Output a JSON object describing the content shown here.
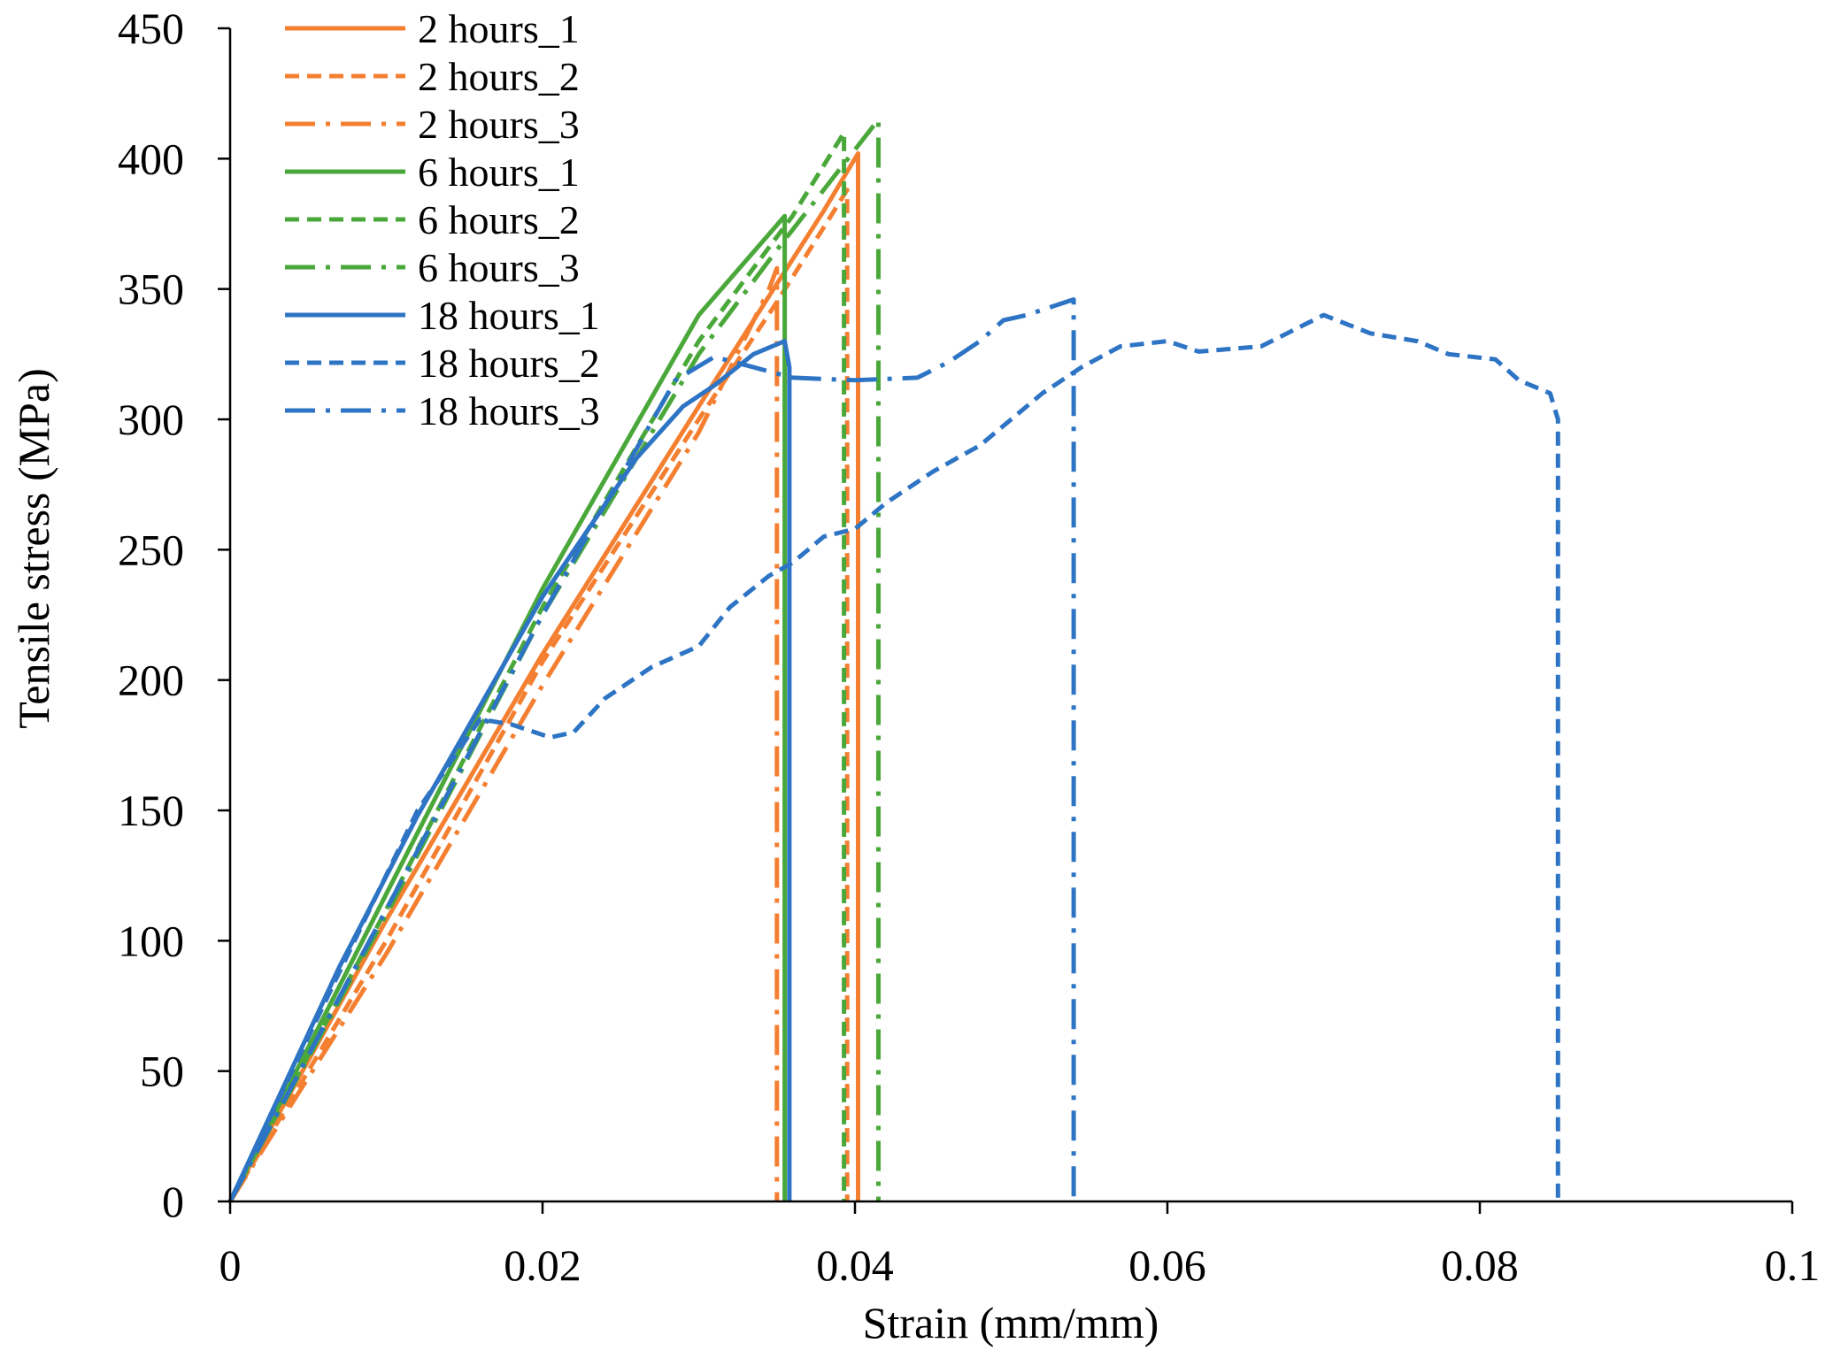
{
  "chart_data": {
    "type": "line",
    "title": "",
    "xlabel": "Strain (mm/mm)",
    "ylabel": "Tensile stress  (MPa)",
    "xlim": [
      0,
      0.1
    ],
    "ylim": [
      0,
      450
    ],
    "xticks": [
      0,
      0.02,
      0.04,
      0.06,
      0.08,
      0.1
    ],
    "xtick_labels": [
      "0",
      "0.02",
      "0.04",
      "0.06",
      "0.08",
      "0.1"
    ],
    "yticks": [
      0,
      50,
      100,
      150,
      200,
      250,
      300,
      350,
      400,
      450
    ],
    "ytick_labels": [
      "0",
      "50",
      "100",
      "150",
      "200",
      "250",
      "300",
      "350",
      "400",
      "450"
    ],
    "grid": false,
    "legend_position": "top-left",
    "series": [
      {
        "name": "2 hours_1",
        "color": "#f47f30",
        "style": "solid",
        "x": [
          0,
          0.01,
          0.02,
          0.03,
          0.035,
          0.038,
          0.0402,
          0.0402
        ],
        "y": [
          0,
          108,
          210,
          305,
          352,
          380,
          402,
          0
        ]
      },
      {
        "name": "2 hours_2",
        "color": "#f47f30",
        "style": "dash",
        "x": [
          0,
          0.01,
          0.02,
          0.03,
          0.035,
          0.0395,
          0.0395
        ],
        "y": [
          0,
          100,
          207,
          300,
          345,
          388,
          0
        ]
      },
      {
        "name": "2 hours_3",
        "color": "#f47f30",
        "style": "dashdot",
        "x": [
          0,
          0.01,
          0.02,
          0.03,
          0.0345,
          0.035,
          0.035
        ],
        "y": [
          0,
          95,
          198,
          295,
          350,
          358,
          0
        ]
      },
      {
        "name": "6 hours_1",
        "color": "#4aa83a",
        "style": "solid",
        "x": [
          0,
          0.01,
          0.02,
          0.03,
          0.0355,
          0.0355
        ],
        "y": [
          0,
          118,
          235,
          340,
          378,
          0
        ]
      },
      {
        "name": "6 hours_2",
        "color": "#4aa83a",
        "style": "dash",
        "x": [
          0,
          0.01,
          0.02,
          0.03,
          0.036,
          0.0393,
          0.0393
        ],
        "y": [
          0,
          112,
          228,
          330,
          378,
          410,
          0
        ]
      },
      {
        "name": "6 hours_3",
        "color": "#4aa83a",
        "style": "dashdot",
        "x": [
          0,
          0.01,
          0.02,
          0.03,
          0.035,
          0.0415,
          0.0415
        ],
        "y": [
          0,
          110,
          225,
          325,
          365,
          415,
          0
        ]
      },
      {
        "name": "18 hours_1",
        "color": "#2e74c4",
        "style": "solid",
        "x": [
          0,
          0.007,
          0.012,
          0.02,
          0.026,
          0.029,
          0.031,
          0.0335,
          0.0355,
          0.0358,
          0.0358
        ],
        "y": [
          0,
          90,
          148,
          232,
          285,
          305,
          313,
          325,
          330,
          320,
          0
        ]
      },
      {
        "name": "18 hours_2",
        "color": "#2e74c4",
        "style": "dash",
        "x": [
          0,
          0.007,
          0.012,
          0.016,
          0.018,
          0.0205,
          0.022,
          0.024,
          0.027,
          0.03,
          0.032,
          0.0345,
          0.036,
          0.038,
          0.04,
          0.042,
          0.045,
          0.048,
          0.05,
          0.052,
          0.0545,
          0.057,
          0.06,
          0.062,
          0.066,
          0.07,
          0.073,
          0.076,
          0.078,
          0.081,
          0.0825,
          0.0845,
          0.085,
          0.085
        ],
        "y": [
          0,
          88,
          150,
          185,
          183,
          178,
          180,
          193,
          205,
          213,
          228,
          240,
          245,
          255,
          258,
          268,
          280,
          290,
          300,
          310,
          320,
          328,
          330,
          326,
          328,
          340,
          333,
          330,
          325,
          323,
          315,
          310,
          300,
          0
        ]
      },
      {
        "name": "18 hours_3",
        "color": "#2e74c4",
        "style": "dashdot",
        "x": [
          0,
          0.01,
          0.02,
          0.0285,
          0.031,
          0.0335,
          0.036,
          0.04,
          0.044,
          0.046,
          0.048,
          0.0495,
          0.051,
          0.0525,
          0.054,
          0.054
        ],
        "y": [
          0,
          112,
          225,
          315,
          324,
          320,
          316,
          315,
          316,
          322,
          330,
          338,
          340,
          343,
          346,
          0
        ]
      }
    ]
  }
}
